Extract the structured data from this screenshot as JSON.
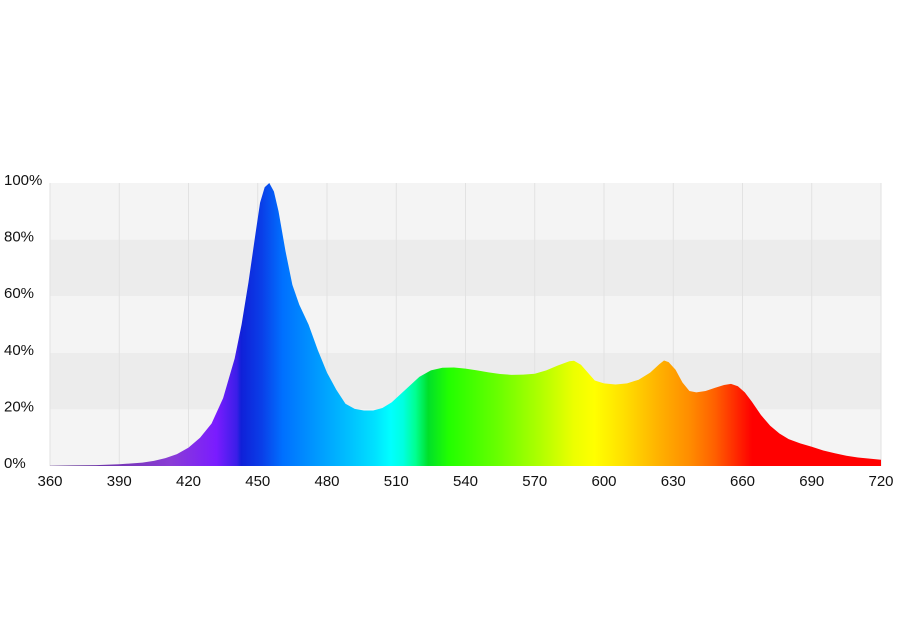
{
  "chart_data": {
    "type": "area",
    "title": "",
    "xlabel": "",
    "ylabel": "",
    "xlim": [
      360,
      720
    ],
    "ylim": [
      0,
      100
    ],
    "grid": true,
    "legend": "none",
    "x_ticks": [
      "360",
      "390",
      "420",
      "450",
      "480",
      "510",
      "540",
      "570",
      "600",
      "630",
      "660",
      "690",
      "720"
    ],
    "y_ticks": [
      "0%",
      "20%",
      "40%",
      "60%",
      "80%",
      "100%"
    ],
    "fill": "visible-spectrum gradient (violet → blue → cyan → green → yellow → orange → red)",
    "colors": {
      "plot_band_light": "#f4f4f4",
      "plot_band_dark": "#ececec",
      "grid": "#e2e2e2"
    },
    "series": [
      {
        "x": [
          360,
          370,
          380,
          390,
          400,
          405,
          410,
          415,
          420,
          425,
          430,
          435,
          440,
          443,
          446,
          449,
          451,
          453,
          455,
          457,
          459,
          462,
          465,
          468,
          472,
          476,
          480,
          484,
          488,
          492,
          496,
          500,
          504,
          508,
          512,
          516,
          520,
          525,
          530,
          535,
          540,
          545,
          550,
          555,
          560,
          565,
          570,
          575,
          580,
          585,
          587,
          590,
          593,
          596,
          600,
          605,
          610,
          615,
          620,
          624,
          626,
          628,
          631,
          634,
          637,
          640,
          644,
          648,
          652,
          655,
          658,
          661,
          664,
          668,
          672,
          676,
          680,
          685,
          690,
          695,
          700,
          705,
          710,
          715,
          720
        ],
        "values": [
          0.1,
          0.2,
          0.3,
          0.6,
          1.2,
          1.8,
          2.8,
          4.2,
          6.5,
          10,
          15,
          24,
          38,
          50,
          65,
          82,
          93,
          98.5,
          100,
          97,
          90,
          76,
          64,
          57,
          50,
          41,
          33,
          27,
          22,
          20.2,
          19.6,
          19.6,
          20.5,
          22.5,
          25.5,
          28.5,
          31.5,
          33.8,
          34.7,
          34.8,
          34.4,
          33.8,
          33.1,
          32.5,
          32.2,
          32.3,
          32.6,
          33.8,
          35.5,
          37,
          37.2,
          35.8,
          33,
          30.2,
          29.2,
          28.8,
          29.2,
          30.5,
          33,
          36,
          37.3,
          36.7,
          34,
          29.5,
          26.5,
          26,
          26.5,
          27.6,
          28.6,
          29,
          28.2,
          26,
          22.8,
          18,
          14.2,
          11.5,
          9.5,
          8,
          6.8,
          5.5,
          4.5,
          3.6,
          3,
          2.6,
          2.2
        ]
      }
    ]
  }
}
